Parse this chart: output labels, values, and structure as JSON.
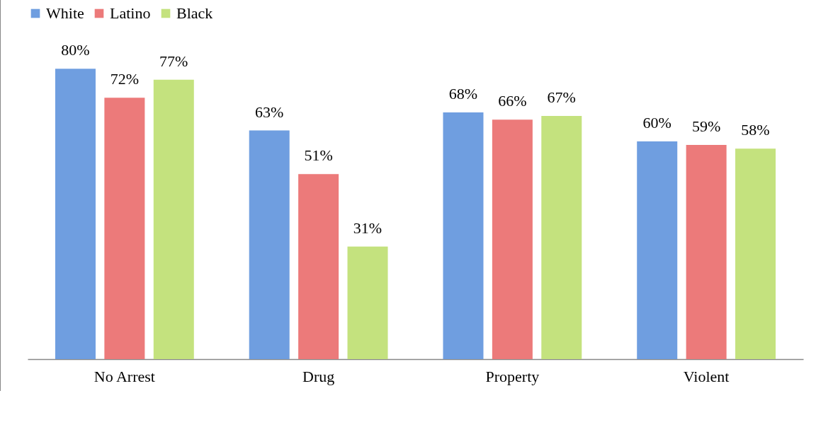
{
  "chart_data": {
    "type": "bar",
    "categories": [
      "No Arrest",
      "Drug",
      "Property",
      "Violent"
    ],
    "series": [
      {
        "name": "White",
        "color": "#6f9ee0",
        "values": [
          80,
          63,
          68,
          60
        ],
        "value_labels": [
          "80%",
          "63%",
          "68%",
          "60%"
        ]
      },
      {
        "name": "Latino",
        "color": "#ec7a7a",
        "values": [
          72,
          51,
          66,
          59
        ],
        "value_labels": [
          "72%",
          "51%",
          "66%",
          "59%"
        ]
      },
      {
        "name": "Black",
        "color": "#c4e27e",
        "values": [
          77,
          31,
          67,
          58
        ],
        "value_labels": [
          "77%",
          "31%",
          "67%",
          "58%"
        ]
      }
    ],
    "legend": "top",
    "grid": false
  }
}
